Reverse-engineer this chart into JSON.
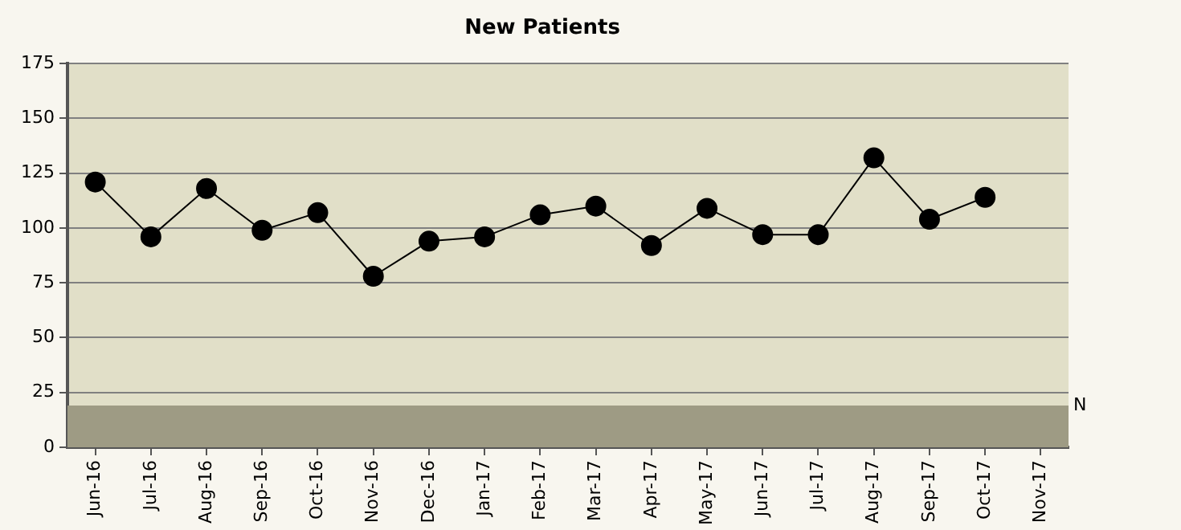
{
  "chart_data": {
    "type": "line",
    "title": "New Patients",
    "categories": [
      "Jun-16",
      "Jul-16",
      "Aug-16",
      "Sep-16",
      "Oct-16",
      "Nov-16",
      "Dec-16",
      "Jan-17",
      "Feb-17",
      "Mar-17",
      "Apr-17",
      "May-17",
      "Jun-17",
      "Jul-17",
      "Aug-17",
      "Sep-17",
      "Oct-17",
      "Nov-17"
    ],
    "series": [
      {
        "color": "#000000",
        "values": [
          121,
          96,
          118,
          99,
          107,
          78,
          94,
          96,
          106,
          110,
          92,
          109,
          97,
          97,
          132,
          104,
          114,
          null
        ]
      }
    ],
    "ylim": [
      0,
      175
    ],
    "yticks": [
      0,
      25,
      50,
      75,
      100,
      125,
      150,
      175
    ],
    "bands": [
      {
        "axis": "y",
        "from": 0,
        "to": 19,
        "label": "N",
        "color": "#9e9b84"
      }
    ],
    "grid": "y",
    "legend": false,
    "marker": "circle",
    "line_style": "solid"
  }
}
